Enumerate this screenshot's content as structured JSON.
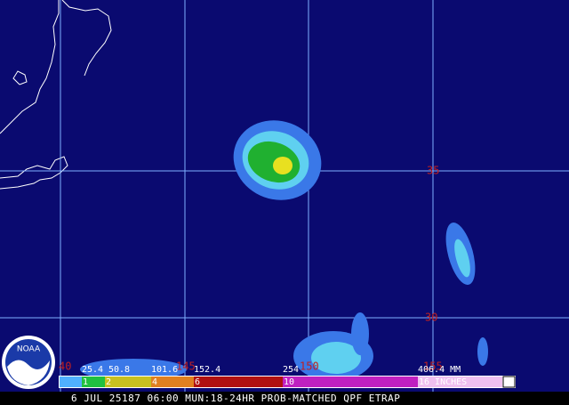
{
  "map": {
    "latitude_labels": [
      "35",
      "30"
    ],
    "longitude_labels": [
      "40",
      "145",
      "150",
      "155"
    ],
    "colorbar": {
      "mm_labels": [
        "25.4",
        "50.8",
        "101.6",
        "152.4",
        "254",
        "406.4 MM"
      ],
      "inch_labels": [
        "1",
        "2",
        "4",
        "6",
        "10",
        "16 INCHES"
      ]
    },
    "caption": "6 JUL 25187 06:00 MUN:18-24HR PROB-MATCHED QPF ETRAP",
    "logo": "NOAA"
  }
}
